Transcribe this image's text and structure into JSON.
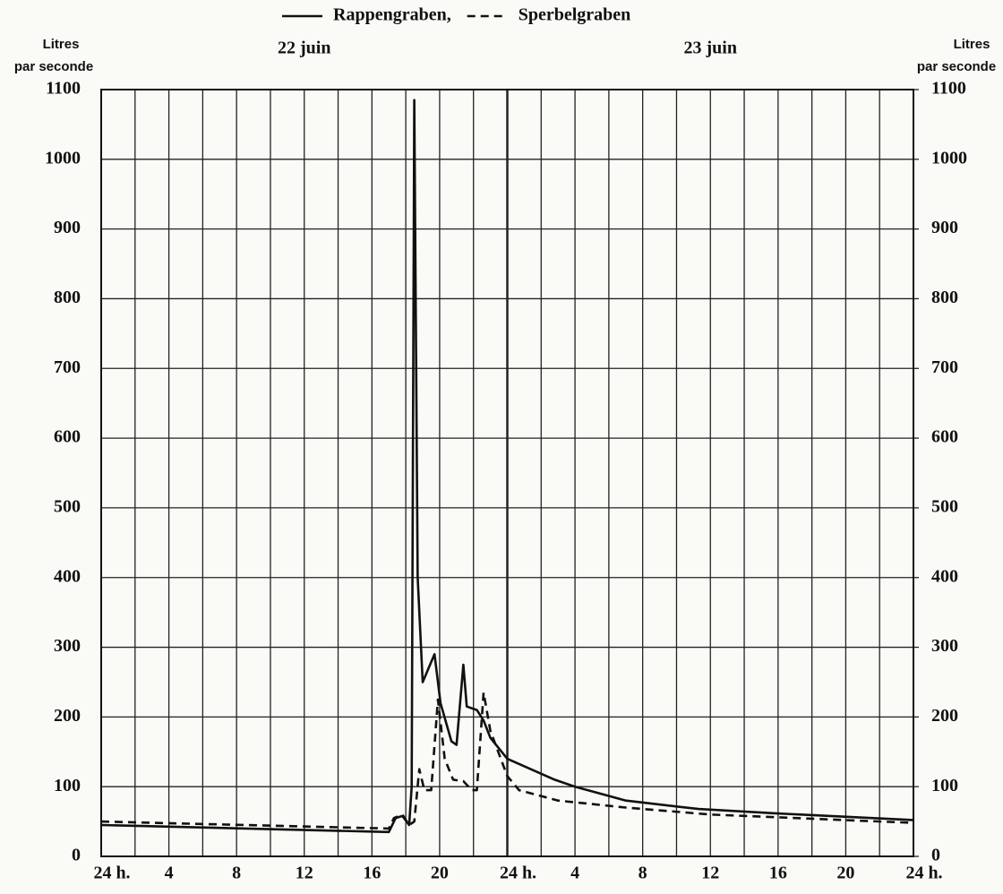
{
  "chart_data": {
    "type": "line",
    "y_label": [
      "Litres",
      "par seconde"
    ],
    "annotations": [
      {
        "text": "22 juin",
        "x": 12
      },
      {
        "text": "23 juin",
        "x": 36
      }
    ],
    "xlim": [
      0,
      48
    ],
    "xticks": [
      {
        "value": 0,
        "label": "24 h."
      },
      4,
      8,
      12,
      16,
      20,
      {
        "value": 24,
        "label": "24 h."
      },
      {
        "value": 28,
        "label": "4"
      },
      {
        "value": 32,
        "label": "8"
      },
      {
        "value": 36,
        "label": "12"
      },
      {
        "value": 40,
        "label": "16"
      },
      {
        "value": 44,
        "label": "20"
      },
      {
        "value": 48,
        "label": "24 h."
      }
    ],
    "ylim": [
      0,
      1100
    ],
    "yticks": [
      0,
      100,
      200,
      300,
      400,
      500,
      600,
      700,
      800,
      900,
      1000,
      1100
    ],
    "y2lim": [
      0,
      1100
    ],
    "y2ticks": [
      0,
      100,
      200,
      300,
      400,
      500,
      600,
      700,
      800,
      900,
      1000,
      1100
    ],
    "grid": true,
    "legend": "top",
    "series": [
      {
        "name": "Rappengraben,",
        "color": "#111111",
        "dash": "solid",
        "x": [
          0,
          17,
          17.4,
          17.8,
          18.2,
          18.35,
          18.5,
          18.7,
          19.0,
          19.7,
          20.05,
          20.7,
          21.0,
          21.4,
          21.6,
          22.2,
          22.6,
          23.0,
          24,
          26.8,
          28,
          31,
          35.3,
          39.7,
          48
        ],
        "values": [
          45,
          35,
          55,
          58,
          45,
          100,
          1085,
          400,
          250,
          290,
          220,
          165,
          160,
          275,
          215,
          210,
          195,
          170,
          140,
          110,
          100,
          80,
          68,
          62,
          52
        ]
      },
      {
        "name": "Sperbelgraben",
        "color": "#111111",
        "dash": "dashed",
        "x": [
          0,
          17,
          17.3,
          17.8,
          18.2,
          18.5,
          18.8,
          19.1,
          19.5,
          19.9,
          20.3,
          20.8,
          21.4,
          21.9,
          22.2,
          22.6,
          23.0,
          24,
          24.7,
          27,
          31,
          36,
          48
        ],
        "values": [
          50,
          40,
          55,
          60,
          45,
          50,
          125,
          95,
          95,
          225,
          140,
          110,
          108,
          95,
          95,
          235,
          180,
          115,
          95,
          80,
          70,
          60,
          48
        ]
      }
    ]
  }
}
